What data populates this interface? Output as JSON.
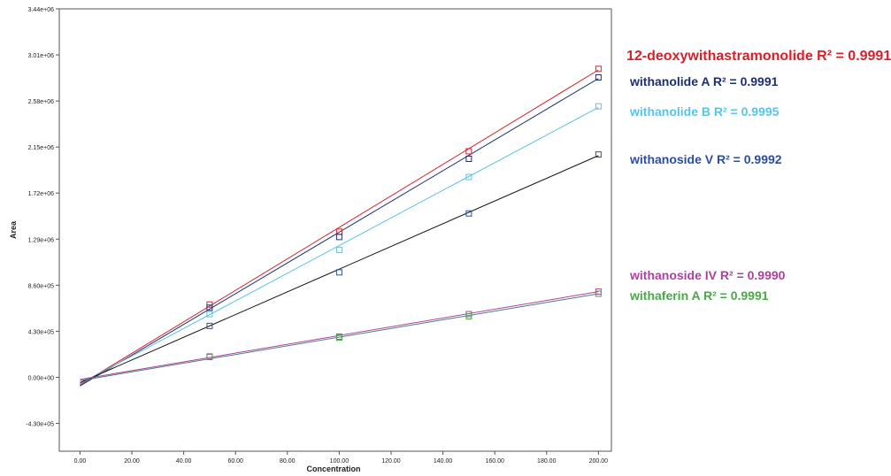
{
  "chart_data": {
    "type": "scatter",
    "xlabel": "Concentration",
    "ylabel": "Area",
    "xlim": [
      -8,
      205
    ],
    "ylim": [
      -690000,
      3440000
    ],
    "xticks": [
      0,
      20,
      40,
      60,
      80,
      100,
      120,
      140,
      160,
      180,
      200
    ],
    "xtick_labels": [
      "0.00",
      "20.00",
      "40.00",
      "60.00",
      "80.00",
      "100.00",
      "120.00",
      "140.00",
      "160.00",
      "180.00",
      "200.00"
    ],
    "yticks": [
      -430000,
      0,
      430000,
      860000,
      1290000,
      1720000,
      2150000,
      2580000,
      3010000,
      3440000
    ],
    "ytick_labels": [
      "-4.30e+05",
      "0.00e+00",
      "4.30e+05",
      "8.60e+05",
      "1.29e+06",
      "1.72e+06",
      "2.15e+06",
      "2.58e+06",
      "3.01e+06",
      "3.44e+06"
    ],
    "fit_x_range": [
      0,
      200
    ],
    "legend_placement": "right-outside",
    "series": [
      {
        "name": "12-deoxywithastramonolide",
        "r2_label": "R² = 0.9991",
        "color": "#d9202a",
        "line_color": "#d9202a",
        "x": [
          50,
          100,
          150,
          200
        ],
        "y": [
          680000,
          1360000,
          2110000,
          2880000
        ],
        "fit": [
          -70000,
          2870000
        ]
      },
      {
        "name": "withanolide  A",
        "r2_label": "R² = 0.9991",
        "color": "#1d2f6f",
        "line_color": "#1d2f6f",
        "x": [
          50,
          100,
          150,
          200
        ],
        "y": [
          650000,
          1310000,
          2040000,
          2800000
        ],
        "fit": [
          -80000,
          2790000
        ]
      },
      {
        "name": "withanolide B",
        "r2_label": "R² = 0.9995",
        "color": "#5bc3e8",
        "line_color": "#5bc3e8",
        "x": [
          50,
          100,
          150,
          200
        ],
        "y": [
          590000,
          1190000,
          1870000,
          2530000
        ],
        "fit": [
          -60000,
          2520000
        ]
      },
      {
        "name": "withanoside V",
        "r2_label": "R² = 0.9992",
        "color": "#2d4e9e",
        "line_color": "#111111",
        "x": [
          50,
          100,
          150,
          200
        ],
        "y": [
          480000,
          980000,
          1530000,
          2080000
        ],
        "fit": [
          -50000,
          2070000
        ]
      },
      {
        "name": "withanoside IV",
        "r2_label": "R² = 0.9990",
        "color": "#b0409e",
        "line_color": "#b0409e",
        "x": [
          50,
          100,
          150,
          200
        ],
        "y": [
          190000,
          380000,
          590000,
          800000
        ],
        "fit": [
          -20000,
          800000
        ]
      },
      {
        "name": "withaferin A",
        "r2_label": "R² = 0.9991",
        "color": "#4aa84a",
        "line_color": "#4a7a8a",
        "x": [
          50,
          100,
          150,
          200
        ],
        "y": [
          195000,
          370000,
          570000,
          780000
        ],
        "fit": [
          -30000,
          780000
        ]
      }
    ]
  }
}
